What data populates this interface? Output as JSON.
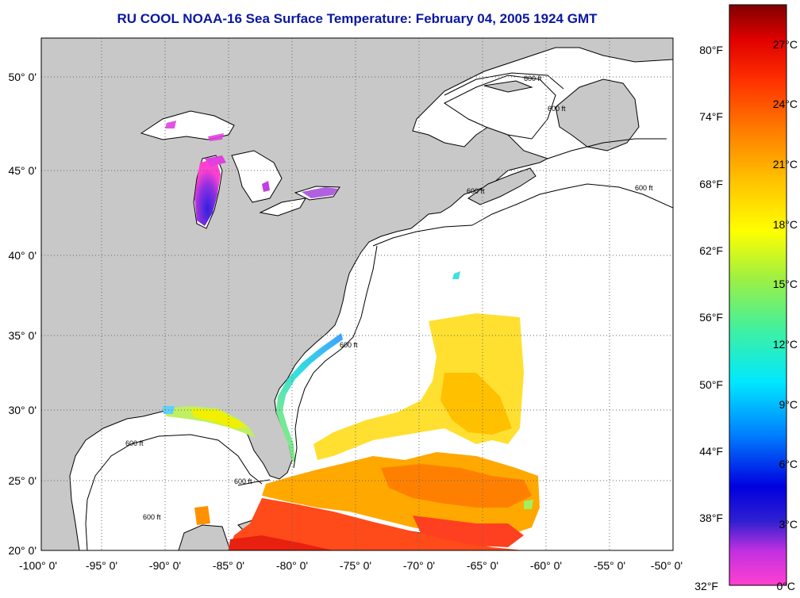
{
  "title": "RU COOL  NOAA-16  Sea Surface Temperature:  February 04, 2005 1924 GMT",
  "map": {
    "lon_labels": [
      "-100° 0'",
      "-95° 0'",
      "-90° 0'",
      "-85° 0'",
      "-80° 0'",
      "-75° 0'",
      "-70° 0'",
      "-65° 0'",
      "-60° 0'",
      "-55° 0'",
      "-50° 0'"
    ],
    "lat_labels": [
      "50° 0'",
      "45° 0'",
      "40° 0'",
      "35° 0'",
      "30° 0'",
      "25° 0'",
      "20° 0'"
    ],
    "isobath_label": "600 ft",
    "land_color": "#c8c8c8",
    "ocean_color": "#ffffff",
    "grid": "dotted"
  },
  "colorbar": {
    "fahrenheit": [
      "80°F",
      "74°F",
      "68°F",
      "62°F",
      "56°F",
      "50°F",
      "44°F",
      "38°F",
      "32°F"
    ],
    "celsius": [
      "27°C",
      "24°C",
      "21°C",
      "18°C",
      "15°C",
      "12°C",
      "9°C",
      "6°C",
      "3°C",
      "0°C"
    ],
    "colors": [
      "#8b0000",
      "#ff1a00",
      "#ff8c00",
      "#ffff00",
      "#7cfc00",
      "#00ffff",
      "#0064ff",
      "#0000c8",
      "#9020d0",
      "#ff40d0"
    ]
  }
}
